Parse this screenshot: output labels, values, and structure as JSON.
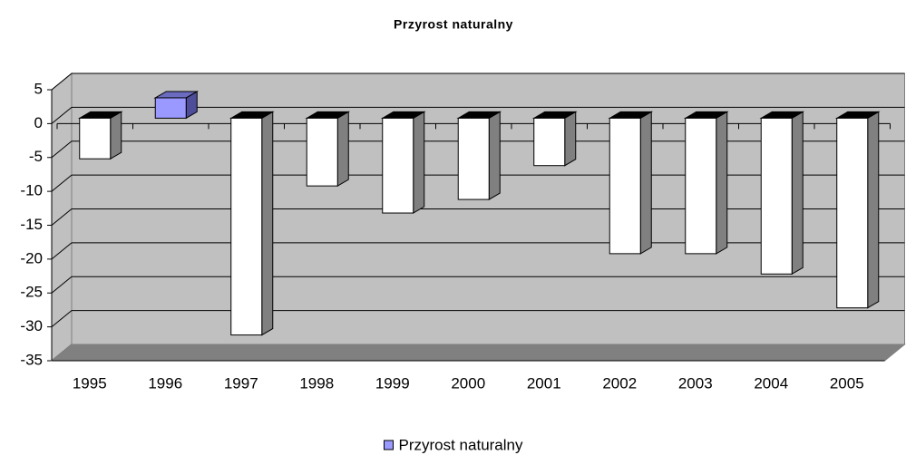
{
  "chart_data": {
    "type": "bar",
    "title": "Przyrost naturalny",
    "categories": [
      "1995",
      "1996",
      "1997",
      "1998",
      "1999",
      "2000",
      "2001",
      "2002",
      "2003",
      "2004",
      "2005"
    ],
    "series": [
      {
        "name": "Przyrost naturalny",
        "color": "#9999ff",
        "negative_color": "#ffffff",
        "values": [
          -6,
          3,
          -32,
          -10,
          -14,
          -12,
          -7,
          -20,
          -20,
          -23,
          -28
        ]
      }
    ],
    "ylim": [
      -35,
      5
    ],
    "yticks": [
      -35,
      -30,
      -25,
      -20,
      -15,
      -10,
      -5,
      0,
      5
    ],
    "grid": true
  }
}
